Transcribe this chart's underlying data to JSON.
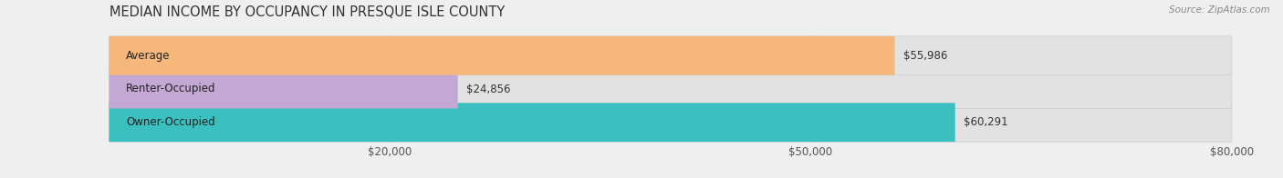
{
  "title": "MEDIAN INCOME BY OCCUPANCY IN PRESQUE ISLE COUNTY",
  "source": "Source: ZipAtlas.com",
  "categories": [
    "Owner-Occupied",
    "Renter-Occupied",
    "Average"
  ],
  "values": [
    60291,
    24856,
    55986
  ],
  "bar_colors": [
    "#3bbfbf",
    "#c4a8d4",
    "#f5b87a"
  ],
  "bar_labels": [
    "$60,291",
    "$24,856",
    "$55,986"
  ],
  "xlim": [
    0,
    80000
  ],
  "xticks": [
    0,
    20000,
    50000,
    80000
  ],
  "xticklabels": [
    "",
    "$20,000",
    "$50,000",
    "$80,000"
  ],
  "background_color": "#efefef",
  "bar_background_color": "#e2e2e2",
  "title_fontsize": 10.5,
  "label_fontsize": 8.5,
  "tick_fontsize": 8.5,
  "bar_height": 0.62,
  "figsize": [
    14.06,
    1.96
  ],
  "dpi": 100
}
